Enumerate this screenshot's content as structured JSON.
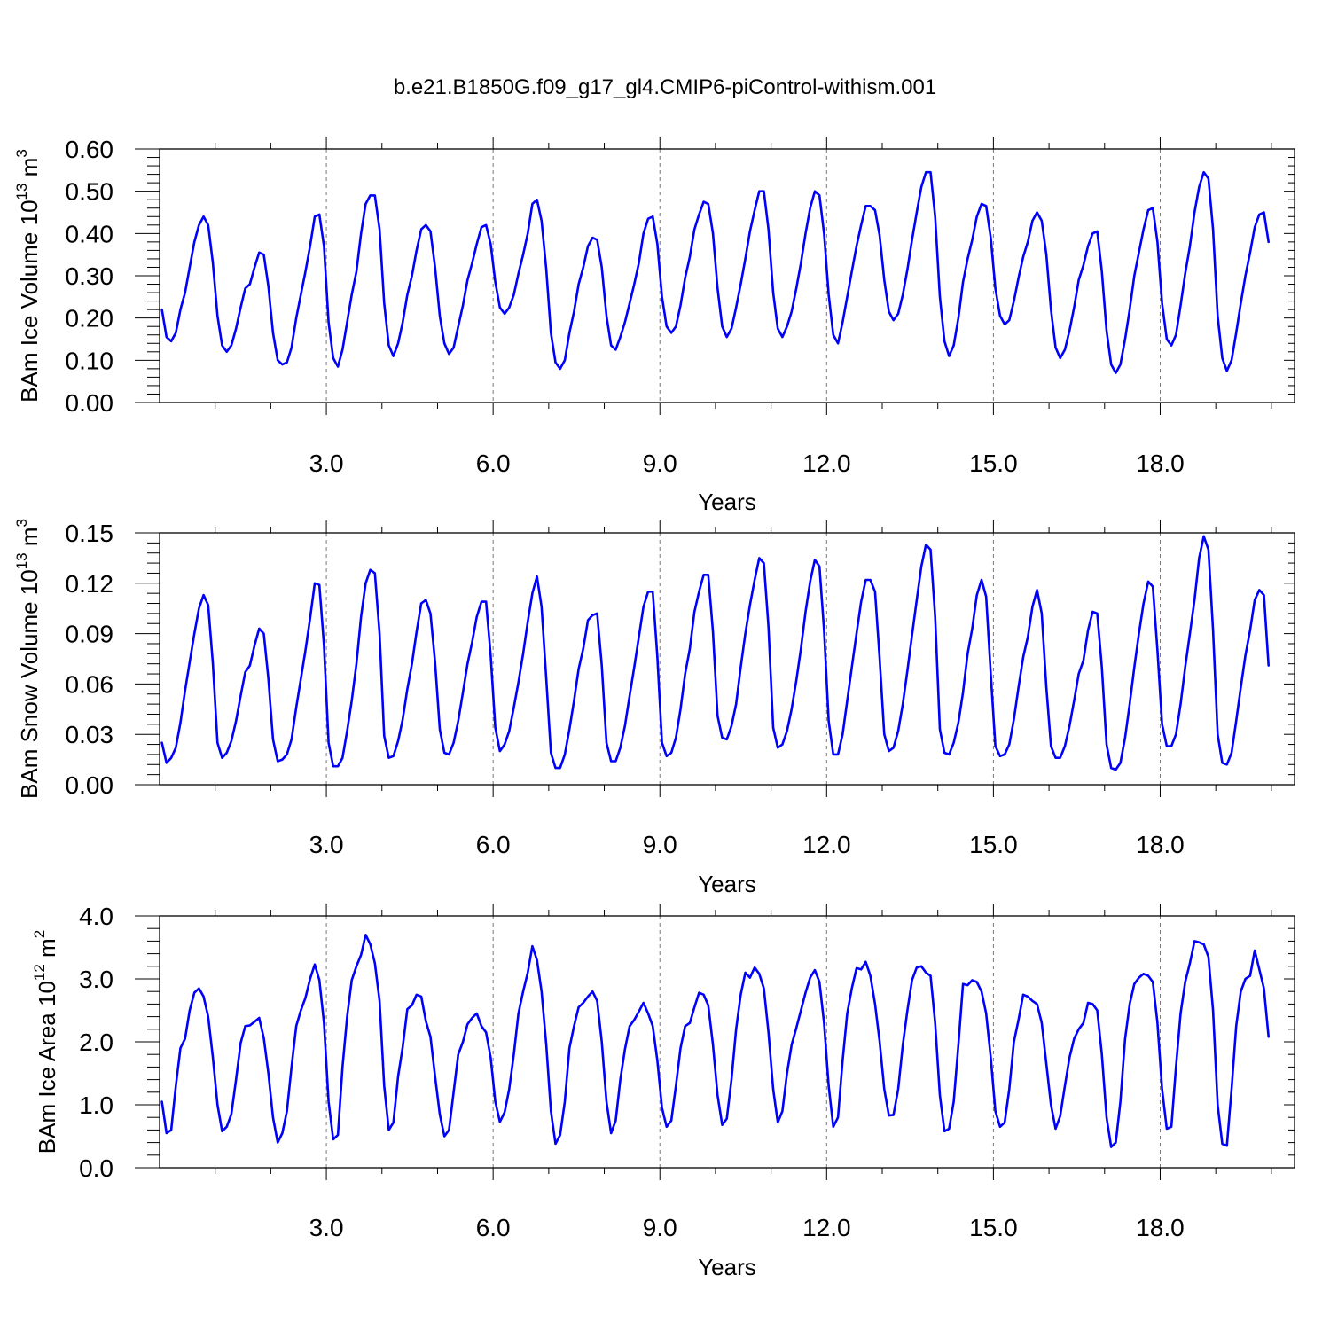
{
  "figure": {
    "title": "b.e21.B1850G.f09_g17_gl4.CMIP6-piControl-withism.001",
    "line_color": "#0000ff"
  },
  "chart_data": [
    {
      "type": "line",
      "title": "",
      "xlabel": "Years",
      "ylabel_parts": {
        "prefix": "BAm Ice Volume 10",
        "exponent": "13",
        "unit": " m",
        "unit_exponent": "3"
      },
      "xlim": [
        0,
        20.417
      ],
      "ylim": [
        0,
        0.6
      ],
      "xticks": [
        3,
        6,
        9,
        12,
        15,
        18
      ],
      "xtick_labels": [
        "3.0",
        "6.0",
        "9.0",
        "12.0",
        "15.0",
        "18.0"
      ],
      "yticks": [
        0,
        0.1,
        0.2,
        0.3,
        0.4,
        0.5,
        0.6
      ],
      "ytick_labels": [
        "0.00",
        "0.10",
        "0.20",
        "0.30",
        "0.40",
        "0.50",
        "0.60"
      ],
      "grid": "dashed vertical at x ticks",
      "x_start": 0.0417,
      "x_step": 0.0833,
      "series": [
        {
          "color": "#0000ff",
          "values": [
            0.22,
            0.155,
            0.145,
            0.165,
            0.22,
            0.26,
            0.32,
            0.38,
            0.42,
            0.44,
            0.42,
            0.33,
            0.205,
            0.135,
            0.12,
            0.135,
            0.175,
            0.225,
            0.27,
            0.28,
            0.32,
            0.355,
            0.35,
            0.275,
            0.165,
            0.1,
            0.09,
            0.095,
            0.13,
            0.2,
            0.255,
            0.31,
            0.37,
            0.44,
            0.445,
            0.37,
            0.19,
            0.105,
            0.085,
            0.125,
            0.19,
            0.255,
            0.31,
            0.4,
            0.47,
            0.49,
            0.49,
            0.41,
            0.235,
            0.135,
            0.11,
            0.14,
            0.19,
            0.255,
            0.3,
            0.36,
            0.41,
            0.42,
            0.405,
            0.32,
            0.205,
            0.14,
            0.115,
            0.13,
            0.18,
            0.23,
            0.29,
            0.33,
            0.375,
            0.415,
            0.42,
            0.375,
            0.285,
            0.225,
            0.21,
            0.225,
            0.255,
            0.305,
            0.35,
            0.4,
            0.47,
            0.48,
            0.43,
            0.315,
            0.165,
            0.095,
            0.08,
            0.1,
            0.165,
            0.215,
            0.28,
            0.32,
            0.37,
            0.39,
            0.385,
            0.32,
            0.205,
            0.135,
            0.125,
            0.155,
            0.19,
            0.235,
            0.28,
            0.33,
            0.4,
            0.435,
            0.44,
            0.375,
            0.25,
            0.18,
            0.165,
            0.18,
            0.23,
            0.295,
            0.345,
            0.41,
            0.445,
            0.475,
            0.47,
            0.4,
            0.27,
            0.18,
            0.155,
            0.175,
            0.225,
            0.28,
            0.34,
            0.405,
            0.455,
            0.5,
            0.5,
            0.41,
            0.26,
            0.175,
            0.155,
            0.18,
            0.215,
            0.27,
            0.33,
            0.4,
            0.46,
            0.5,
            0.49,
            0.4,
            0.255,
            0.16,
            0.14,
            0.19,
            0.25,
            0.31,
            0.37,
            0.42,
            0.465,
            0.465,
            0.455,
            0.395,
            0.29,
            0.215,
            0.195,
            0.21,
            0.255,
            0.315,
            0.385,
            0.45,
            0.51,
            0.545,
            0.545,
            0.44,
            0.25,
            0.145,
            0.11,
            0.135,
            0.2,
            0.285,
            0.34,
            0.385,
            0.44,
            0.47,
            0.465,
            0.39,
            0.27,
            0.205,
            0.185,
            0.195,
            0.24,
            0.295,
            0.345,
            0.38,
            0.43,
            0.45,
            0.43,
            0.35,
            0.22,
            0.13,
            0.105,
            0.125,
            0.17,
            0.225,
            0.29,
            0.325,
            0.37,
            0.4,
            0.405,
            0.31,
            0.17,
            0.09,
            0.07,
            0.09,
            0.15,
            0.22,
            0.3,
            0.355,
            0.41,
            0.455,
            0.46,
            0.38,
            0.235,
            0.15,
            0.135,
            0.16,
            0.23,
            0.305,
            0.37,
            0.45,
            0.51,
            0.545,
            0.53,
            0.41,
            0.205,
            0.105,
            0.075,
            0.1,
            0.165,
            0.235,
            0.3,
            0.355,
            0.415,
            0.445,
            0.45,
            0.38
          ]
        }
      ]
    },
    {
      "type": "line",
      "title": "",
      "xlabel": "Years",
      "ylabel_parts": {
        "prefix": "BAm Snow Volume 10",
        "exponent": "13",
        "unit": " m",
        "unit_exponent": "3"
      },
      "xlim": [
        0,
        20.417
      ],
      "ylim": [
        0,
        0.15
      ],
      "xticks": [
        3,
        6,
        9,
        12,
        15,
        18
      ],
      "xtick_labels": [
        "3.0",
        "6.0",
        "9.0",
        "12.0",
        "15.0",
        "18.0"
      ],
      "yticks": [
        0,
        0.03,
        0.06,
        0.09,
        0.12,
        0.15
      ],
      "ytick_labels": [
        "0.00",
        "0.03",
        "0.06",
        "0.09",
        "0.12",
        "0.15"
      ],
      "grid": "dashed vertical at x ticks",
      "x_start": 0.0417,
      "x_step": 0.0833,
      "series": [
        {
          "color": "#0000ff",
          "values": [
            0.025,
            0.013,
            0.016,
            0.022,
            0.037,
            0.056,
            0.073,
            0.09,
            0.105,
            0.113,
            0.107,
            0.072,
            0.025,
            0.016,
            0.019,
            0.026,
            0.038,
            0.053,
            0.067,
            0.071,
            0.083,
            0.093,
            0.09,
            0.063,
            0.027,
            0.014,
            0.015,
            0.018,
            0.027,
            0.046,
            0.063,
            0.08,
            0.099,
            0.12,
            0.119,
            0.083,
            0.025,
            0.011,
            0.011,
            0.016,
            0.032,
            0.05,
            0.072,
            0.1,
            0.12,
            0.128,
            0.126,
            0.09,
            0.029,
            0.016,
            0.017,
            0.026,
            0.039,
            0.057,
            0.072,
            0.091,
            0.108,
            0.11,
            0.102,
            0.073,
            0.033,
            0.019,
            0.018,
            0.025,
            0.038,
            0.055,
            0.072,
            0.085,
            0.1,
            0.109,
            0.109,
            0.077,
            0.034,
            0.02,
            0.024,
            0.032,
            0.046,
            0.061,
            0.078,
            0.097,
            0.114,
            0.124,
            0.106,
            0.063,
            0.019,
            0.01,
            0.01,
            0.018,
            0.033,
            0.05,
            0.069,
            0.081,
            0.098,
            0.101,
            0.102,
            0.071,
            0.025,
            0.014,
            0.014,
            0.022,
            0.035,
            0.053,
            0.07,
            0.088,
            0.106,
            0.115,
            0.115,
            0.076,
            0.025,
            0.017,
            0.019,
            0.028,
            0.045,
            0.066,
            0.081,
            0.103,
            0.115,
            0.125,
            0.125,
            0.091,
            0.041,
            0.028,
            0.027,
            0.035,
            0.048,
            0.07,
            0.09,
            0.107,
            0.122,
            0.135,
            0.132,
            0.094,
            0.034,
            0.022,
            0.024,
            0.032,
            0.045,
            0.062,
            0.081,
            0.103,
            0.121,
            0.134,
            0.13,
            0.092,
            0.038,
            0.018,
            0.018,
            0.03,
            0.05,
            0.07,
            0.09,
            0.109,
            0.122,
            0.122,
            0.115,
            0.075,
            0.03,
            0.02,
            0.022,
            0.032,
            0.048,
            0.068,
            0.089,
            0.11,
            0.13,
            0.143,
            0.14,
            0.1,
            0.033,
            0.019,
            0.018,
            0.025,
            0.037,
            0.055,
            0.078,
            0.093,
            0.113,
            0.122,
            0.112,
            0.066,
            0.023,
            0.017,
            0.018,
            0.024,
            0.039,
            0.058,
            0.076,
            0.088,
            0.106,
            0.116,
            0.102,
            0.058,
            0.023,
            0.016,
            0.016,
            0.023,
            0.035,
            0.05,
            0.066,
            0.074,
            0.092,
            0.103,
            0.102,
            0.07,
            0.024,
            0.01,
            0.009,
            0.013,
            0.028,
            0.048,
            0.07,
            0.09,
            0.108,
            0.121,
            0.118,
            0.08,
            0.036,
            0.023,
            0.023,
            0.03,
            0.048,
            0.07,
            0.09,
            0.11,
            0.135,
            0.148,
            0.14,
            0.092,
            0.03,
            0.013,
            0.012,
            0.019,
            0.038,
            0.058,
            0.077,
            0.092,
            0.11,
            0.116,
            0.113,
            0.071
          ]
        }
      ]
    },
    {
      "type": "line",
      "title": "",
      "xlabel": "Years",
      "ylabel_parts": {
        "prefix": "BAm Ice Area 10",
        "exponent": "12",
        "unit": " m",
        "unit_exponent": "2"
      },
      "xlim": [
        0,
        20.417
      ],
      "ylim": [
        0,
        4.0
      ],
      "xticks": [
        3,
        6,
        9,
        12,
        15,
        18
      ],
      "xtick_labels": [
        "3.0",
        "6.0",
        "9.0",
        "12.0",
        "15.0",
        "18.0"
      ],
      "yticks": [
        0,
        1,
        2,
        3,
        4
      ],
      "ytick_labels": [
        "0.0",
        "1.0",
        "2.0",
        "3.0",
        "4.0"
      ],
      "grid": "dashed vertical at x ticks",
      "x_start": 0.0417,
      "x_step": 0.0833,
      "series": [
        {
          "color": "#0000ff",
          "values": [
            1.05,
            0.55,
            0.6,
            1.3,
            1.9,
            2.05,
            2.5,
            2.78,
            2.85,
            2.72,
            2.4,
            1.75,
            1.0,
            0.58,
            0.65,
            0.85,
            1.4,
            1.98,
            2.25,
            2.26,
            2.32,
            2.38,
            2.06,
            1.5,
            0.8,
            0.4,
            0.55,
            0.9,
            1.6,
            2.25,
            2.5,
            2.7,
            3.0,
            3.23,
            2.98,
            2.3,
            1.05,
            0.45,
            0.52,
            1.6,
            2.4,
            2.98,
            3.2,
            3.38,
            3.7,
            3.55,
            3.25,
            2.65,
            1.3,
            0.6,
            0.72,
            1.45,
            1.92,
            2.52,
            2.58,
            2.75,
            2.72,
            2.33,
            2.08,
            1.45,
            0.85,
            0.5,
            0.6,
            1.2,
            1.8,
            2.0,
            2.28,
            2.38,
            2.45,
            2.25,
            2.15,
            1.75,
            1.05,
            0.73,
            0.88,
            1.25,
            1.8,
            2.45,
            2.8,
            3.1,
            3.52,
            3.3,
            2.8,
            1.95,
            0.9,
            0.38,
            0.52,
            1.05,
            1.9,
            2.25,
            2.55,
            2.62,
            2.72,
            2.8,
            2.65,
            2.0,
            1.05,
            0.55,
            0.75,
            1.4,
            1.88,
            2.25,
            2.35,
            2.48,
            2.62,
            2.45,
            2.25,
            1.7,
            0.95,
            0.65,
            0.75,
            1.3,
            1.9,
            2.25,
            2.3,
            2.55,
            2.78,
            2.75,
            2.58,
            1.95,
            1.15,
            0.68,
            0.78,
            1.4,
            2.2,
            2.75,
            3.1,
            3.02,
            3.18,
            3.08,
            2.85,
            2.15,
            1.25,
            0.72,
            0.9,
            1.5,
            1.95,
            2.22,
            2.5,
            2.78,
            3.02,
            3.14,
            2.95,
            2.3,
            1.3,
            0.65,
            0.8,
            1.7,
            2.45,
            2.85,
            3.17,
            3.15,
            3.27,
            3.05,
            2.6,
            2.0,
            1.25,
            0.83,
            0.84,
            1.25,
            1.95,
            2.5,
            2.98,
            3.18,
            3.2,
            3.1,
            3.05,
            2.3,
            1.15,
            0.58,
            0.62,
            1.05,
            1.95,
            2.92,
            2.9,
            2.98,
            2.95,
            2.8,
            2.45,
            1.75,
            0.9,
            0.65,
            0.72,
            1.25,
            2.0,
            2.35,
            2.75,
            2.72,
            2.65,
            2.6,
            2.3,
            1.65,
            1.0,
            0.62,
            0.82,
            1.3,
            1.75,
            2.05,
            2.2,
            2.3,
            2.62,
            2.6,
            2.5,
            1.8,
            0.8,
            0.33,
            0.4,
            1.05,
            2.05,
            2.6,
            2.92,
            3.02,
            3.08,
            3.05,
            2.95,
            2.3,
            1.25,
            0.62,
            0.65,
            1.6,
            2.45,
            2.95,
            3.25,
            3.6,
            3.58,
            3.55,
            3.35,
            2.5,
            1.0,
            0.38,
            0.35,
            1.25,
            2.25,
            2.8,
            3.0,
            3.05,
            3.45,
            3.15,
            2.85,
            2.08
          ]
        }
      ]
    }
  ]
}
